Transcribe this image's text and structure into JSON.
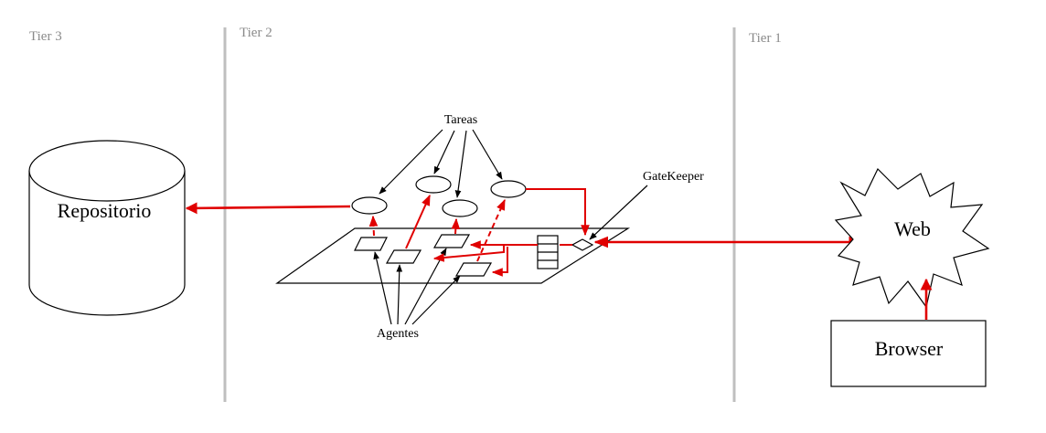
{
  "tiers": {
    "tier3": "Tier 3",
    "tier2": "Tier 2",
    "tier1": "Tier 1"
  },
  "nodes": {
    "repository": "Repositorio",
    "tasks": "Tareas",
    "gatekeeper": "GateKeeper",
    "agents": "Agentes",
    "web": "Web",
    "browser": "Browser"
  },
  "colors": {
    "flow": "#e00000",
    "separator": "#bfbfbf",
    "tier_label": "#8a8a8a"
  }
}
